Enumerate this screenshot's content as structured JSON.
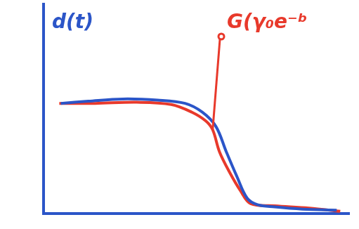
{
  "chart_data": {
    "type": "line",
    "y_label": "d(t)",
    "annotations": [
      {
        "text": "G(γ₀e⁻ᵇ",
        "color": "#e8392b"
      }
    ],
    "xlim": [
      0,
      10.3
    ],
    "ylim": [
      0,
      1.9
    ],
    "grid": false,
    "tick_labels": false,
    "series": [
      {
        "color": "#2b55c8",
        "x": [
          0.58,
          1.51,
          2.67,
          3.84,
          4.77,
          5.35,
          5.81,
          6.16,
          6.51,
          6.86,
          7.21,
          7.79,
          8.72,
          9.88
        ],
        "values": [
          1.0,
          1.02,
          1.04,
          1.03,
          1.0,
          0.92,
          0.79,
          0.56,
          0.34,
          0.14,
          0.08,
          0.06,
          0.04,
          0.03
        ]
      },
      {
        "color": "#e8392b",
        "x": [
          0.53,
          1.74,
          3.14,
          4.3,
          5.0,
          5.47,
          5.7,
          5.93,
          6.28,
          6.63,
          6.98,
          7.79,
          8.95,
          10.0
        ],
        "values": [
          1.0,
          1.0,
          1.01,
          0.99,
          0.92,
          0.84,
          0.76,
          0.56,
          0.37,
          0.21,
          0.09,
          0.07,
          0.05,
          0.02
        ]
      }
    ]
  }
}
